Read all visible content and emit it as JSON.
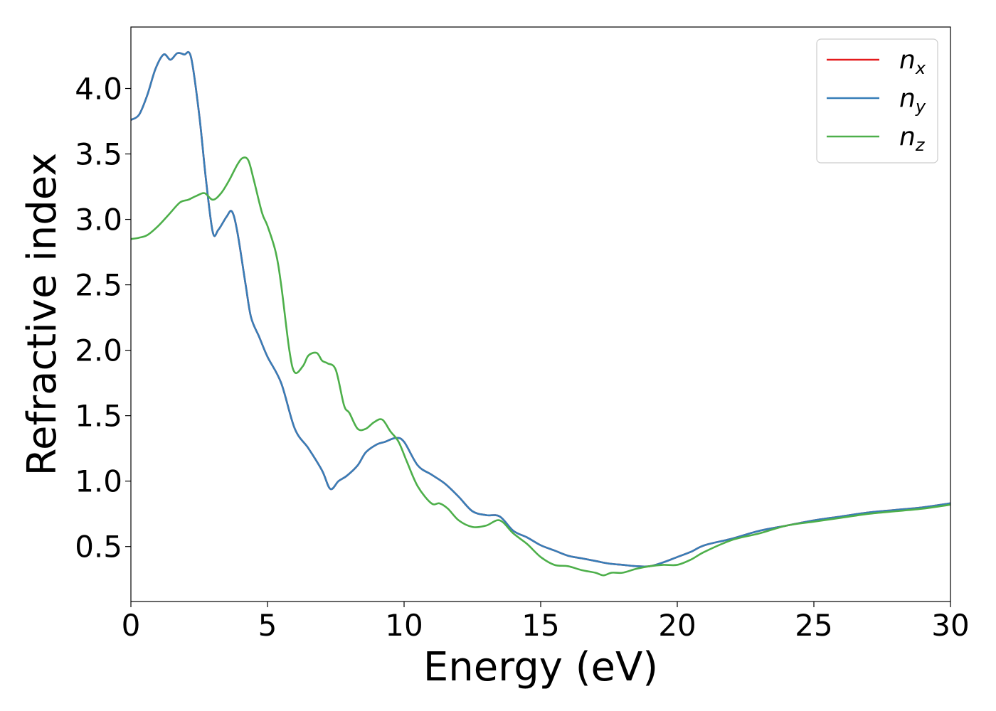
{
  "chart_data": {
    "type": "line",
    "xlabel": "Energy (eV)",
    "ylabel": "Refractive index",
    "xlim": [
      0,
      30
    ],
    "ylim": [
      0.08,
      4.47
    ],
    "grid": false,
    "legend_placement": "top-right",
    "x_ticks": [
      "0",
      "5",
      "10",
      "15",
      "20",
      "25",
      "30"
    ],
    "y_ticks": [
      "0.5",
      "1.0",
      "1.5",
      "2.0",
      "2.5",
      "3.0",
      "3.5",
      "4.0"
    ],
    "series": [
      {
        "name": "n",
        "subscript": "x",
        "color": "#e41a1c",
        "x": [
          0,
          0.3,
          0.6,
          0.9,
          1.2,
          1.45,
          1.7,
          1.95,
          2.2,
          2.5,
          2.75,
          3.0,
          3.2,
          3.5,
          3.7,
          3.9,
          4.2,
          4.4,
          4.7,
          5.0,
          5.5,
          6.0,
          6.5,
          7.0,
          7.3,
          7.6,
          7.9,
          8.3,
          8.6,
          9.0,
          9.3,
          9.7,
          10.0,
          10.5,
          11.0,
          11.5,
          12.0,
          12.5,
          13.0,
          13.5,
          14.0,
          14.5,
          15.0,
          15.5,
          16.0,
          16.5,
          17.0,
          17.5,
          18.0,
          18.5,
          19.0,
          19.5,
          20.0,
          20.5,
          21.0,
          22.0,
          23.0,
          24.0,
          25.0,
          26.0,
          27.0,
          28.0,
          29.0,
          30.0
        ],
        "y": [
          3.76,
          3.8,
          3.95,
          4.15,
          4.26,
          4.22,
          4.27,
          4.26,
          4.24,
          3.8,
          3.3,
          2.9,
          2.92,
          3.02,
          3.06,
          2.9,
          2.5,
          2.25,
          2.1,
          1.95,
          1.75,
          1.4,
          1.25,
          1.08,
          0.94,
          1.0,
          1.04,
          1.12,
          1.22,
          1.28,
          1.3,
          1.33,
          1.3,
          1.12,
          1.05,
          0.98,
          0.88,
          0.77,
          0.74,
          0.73,
          0.62,
          0.57,
          0.51,
          0.47,
          0.43,
          0.41,
          0.39,
          0.37,
          0.36,
          0.35,
          0.35,
          0.38,
          0.42,
          0.46,
          0.51,
          0.56,
          0.62,
          0.66,
          0.7,
          0.73,
          0.76,
          0.78,
          0.8,
          0.83
        ]
      },
      {
        "name": "n",
        "subscript": "y",
        "color": "#377eb8",
        "x": [
          0,
          0.3,
          0.6,
          0.9,
          1.2,
          1.45,
          1.7,
          1.95,
          2.2,
          2.5,
          2.75,
          3.0,
          3.2,
          3.5,
          3.7,
          3.9,
          4.2,
          4.4,
          4.7,
          5.0,
          5.5,
          6.0,
          6.5,
          7.0,
          7.3,
          7.6,
          7.9,
          8.3,
          8.6,
          9.0,
          9.3,
          9.7,
          10.0,
          10.5,
          11.0,
          11.5,
          12.0,
          12.5,
          13.0,
          13.5,
          14.0,
          14.5,
          15.0,
          15.5,
          16.0,
          16.5,
          17.0,
          17.5,
          18.0,
          18.5,
          19.0,
          19.5,
          20.0,
          20.5,
          21.0,
          22.0,
          23.0,
          24.0,
          25.0,
          26.0,
          27.0,
          28.0,
          29.0,
          30.0
        ],
        "y": [
          3.76,
          3.8,
          3.95,
          4.15,
          4.26,
          4.22,
          4.27,
          4.26,
          4.24,
          3.8,
          3.3,
          2.9,
          2.92,
          3.02,
          3.06,
          2.9,
          2.5,
          2.25,
          2.1,
          1.95,
          1.75,
          1.4,
          1.25,
          1.08,
          0.94,
          1.0,
          1.04,
          1.12,
          1.22,
          1.28,
          1.3,
          1.33,
          1.3,
          1.12,
          1.05,
          0.98,
          0.88,
          0.77,
          0.74,
          0.73,
          0.62,
          0.57,
          0.51,
          0.47,
          0.43,
          0.41,
          0.39,
          0.37,
          0.36,
          0.35,
          0.35,
          0.38,
          0.42,
          0.46,
          0.51,
          0.56,
          0.62,
          0.66,
          0.7,
          0.73,
          0.76,
          0.78,
          0.8,
          0.83
        ]
      },
      {
        "name": "n",
        "subscript": "z",
        "color": "#4daf4a",
        "x": [
          0,
          0.3,
          0.6,
          1.0,
          1.4,
          1.8,
          2.1,
          2.4,
          2.7,
          3.0,
          3.3,
          3.6,
          3.9,
          4.1,
          4.3,
          4.5,
          4.8,
          5.0,
          5.3,
          5.5,
          5.8,
          6.0,
          6.3,
          6.5,
          6.8,
          7.0,
          7.2,
          7.5,
          7.8,
          8.0,
          8.3,
          8.6,
          8.9,
          9.2,
          9.5,
          9.8,
          10.1,
          10.5,
          11.0,
          11.3,
          11.6,
          12.0,
          12.5,
          13.0,
          13.5,
          14.0,
          14.5,
          15.0,
          15.5,
          16.0,
          16.5,
          17.0,
          17.3,
          17.6,
          18.0,
          18.5,
          19.0,
          19.5,
          20.0,
          20.5,
          21.0,
          22.0,
          23.0,
          24.0,
          25.0,
          26.0,
          27.0,
          28.0,
          29.0,
          30.0
        ],
        "y": [
          2.85,
          2.86,
          2.88,
          2.95,
          3.04,
          3.13,
          3.15,
          3.18,
          3.2,
          3.15,
          3.2,
          3.3,
          3.42,
          3.47,
          3.45,
          3.3,
          3.05,
          2.95,
          2.75,
          2.5,
          2.0,
          1.83,
          1.88,
          1.96,
          1.98,
          1.92,
          1.9,
          1.85,
          1.58,
          1.52,
          1.4,
          1.4,
          1.45,
          1.47,
          1.38,
          1.3,
          1.15,
          0.96,
          0.83,
          0.83,
          0.79,
          0.7,
          0.65,
          0.66,
          0.7,
          0.6,
          0.52,
          0.42,
          0.36,
          0.35,
          0.32,
          0.3,
          0.28,
          0.3,
          0.3,
          0.33,
          0.35,
          0.36,
          0.36,
          0.4,
          0.46,
          0.55,
          0.6,
          0.66,
          0.69,
          0.72,
          0.75,
          0.77,
          0.79,
          0.82
        ]
      }
    ]
  }
}
